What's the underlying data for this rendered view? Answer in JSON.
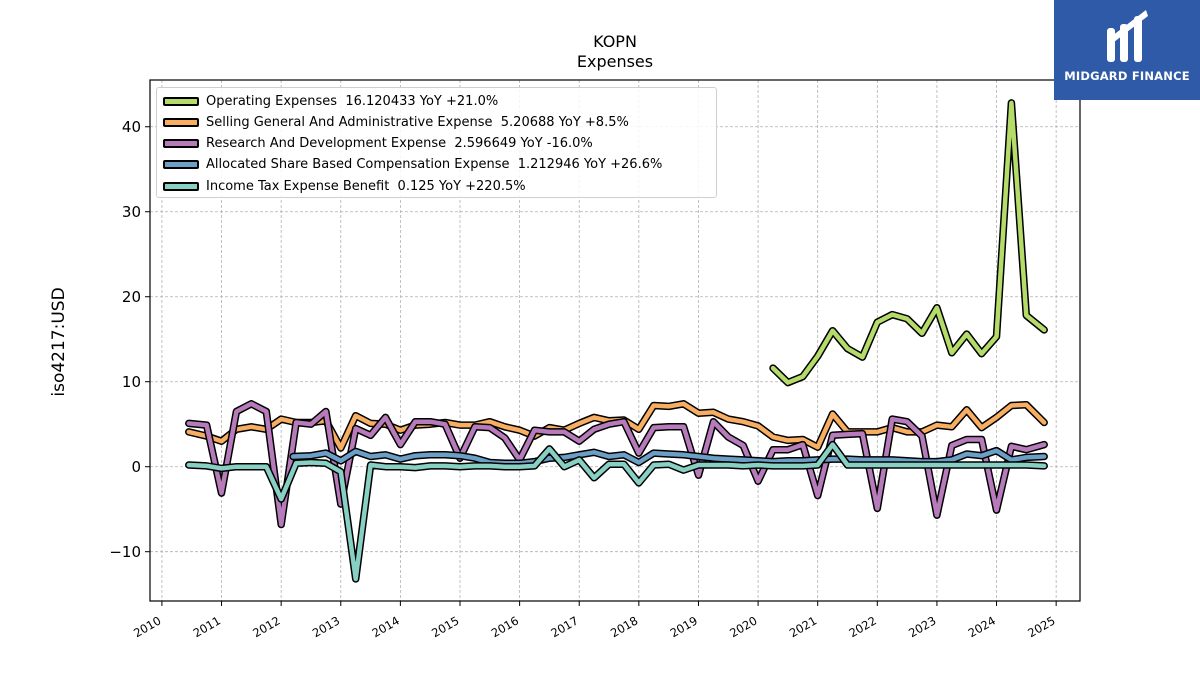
{
  "header": {
    "title": "KOPN",
    "subtitle": "Expenses"
  },
  "brand": {
    "name": "MIDGARD FINANCE",
    "color": "#2f5aa8"
  },
  "chart_data": {
    "type": "line",
    "title": "KOPN",
    "subtitle": "Expenses",
    "xlabel": "",
    "ylabel": "iso4217:USD",
    "xlim": [
      2009.8,
      2025.4
    ],
    "ylim": [
      -15.8,
      45.5
    ],
    "x_ticks": [
      "2010",
      "2011",
      "2012",
      "2013",
      "2014",
      "2015",
      "2016",
      "2017",
      "2018",
      "2019",
      "2020",
      "2021",
      "2022",
      "2023",
      "2024",
      "2025"
    ],
    "y_ticks": [
      -10,
      0,
      10,
      20,
      30,
      40
    ],
    "y_tick_labels": [
      "−10",
      "0",
      "10",
      "20",
      "30",
      "40"
    ],
    "grid": true,
    "legend_position": "top-left",
    "series": [
      {
        "name": "Operating Expenses",
        "legend": "Operating Expenses  16.120433 YoY +21.0%",
        "color": "#b5dc6a",
        "x": [
          2020.25,
          2020.5,
          2020.75,
          2021.0,
          2021.25,
          2021.5,
          2021.75,
          2022.0,
          2022.25,
          2022.5,
          2022.75,
          2023.0,
          2023.25,
          2023.5,
          2023.75,
          2024.0,
          2024.25,
          2024.5,
          2024.8
        ],
        "y": [
          11.6,
          9.9,
          10.6,
          13.0,
          16.0,
          13.9,
          12.9,
          17.0,
          17.9,
          17.4,
          15.7,
          18.7,
          13.4,
          15.6,
          13.3,
          15.3,
          42.8,
          17.8,
          16.1
        ]
      },
      {
        "name": "Selling General And Administrative Expense",
        "legend": "Selling General And Administrative Expense  5.20688 YoY +8.5%",
        "color": "#f7ae62",
        "x": [
          2010.45,
          2010.75,
          2011.0,
          2011.25,
          2011.5,
          2011.75,
          2012.0,
          2012.25,
          2012.5,
          2012.75,
          2013.0,
          2013.25,
          2013.5,
          2013.75,
          2014.0,
          2014.25,
          2014.5,
          2014.75,
          2015.0,
          2015.25,
          2015.5,
          2015.75,
          2016.0,
          2016.25,
          2016.5,
          2016.75,
          2017.0,
          2017.25,
          2017.5,
          2017.75,
          2018.0,
          2018.25,
          2018.5,
          2018.75,
          2019.0,
          2019.25,
          2019.5,
          2019.75,
          2020.0,
          2020.25,
          2020.5,
          2020.75,
          2021.0,
          2021.25,
          2021.5,
          2021.75,
          2022.0,
          2022.25,
          2022.5,
          2022.75,
          2023.0,
          2023.25,
          2023.5,
          2023.75,
          2024.0,
          2024.25,
          2024.5,
          2024.8
        ],
        "y": [
          4.1,
          3.6,
          3.0,
          4.4,
          4.7,
          4.4,
          5.6,
          5.2,
          5.2,
          5.4,
          2.2,
          6.0,
          5.1,
          5.0,
          4.3,
          4.9,
          5.0,
          5.2,
          4.9,
          4.9,
          5.3,
          4.7,
          4.3,
          3.6,
          4.6,
          4.3,
          5.1,
          5.8,
          5.4,
          5.5,
          4.4,
          7.2,
          7.1,
          7.4,
          6.3,
          6.4,
          5.6,
          5.3,
          4.8,
          3.5,
          3.1,
          3.2,
          2.3,
          6.2,
          4.1,
          4.1,
          4.1,
          4.6,
          4.1,
          4.1,
          4.9,
          4.7,
          6.7,
          4.6,
          5.8,
          7.2,
          7.3,
          5.2
        ]
      },
      {
        "name": "Research And Development Expense",
        "legend": "Research And Development Expense  2.596649 YoY -16.0%",
        "color": "#b77bbc",
        "x": [
          2010.45,
          2010.75,
          2011.0,
          2011.25,
          2011.5,
          2011.75,
          2012.0,
          2012.25,
          2012.5,
          2012.75,
          2013.0,
          2013.25,
          2013.5,
          2013.75,
          2014.0,
          2014.25,
          2014.5,
          2014.75,
          2015.0,
          2015.25,
          2015.5,
          2015.75,
          2016.0,
          2016.25,
          2016.5,
          2016.75,
          2017.0,
          2017.25,
          2017.5,
          2017.75,
          2018.0,
          2018.25,
          2018.5,
          2018.75,
          2019.0,
          2019.25,
          2019.5,
          2019.75,
          2020.0,
          2020.25,
          2020.5,
          2020.75,
          2021.0,
          2021.25,
          2021.5,
          2021.75,
          2022.0,
          2022.25,
          2022.5,
          2022.75,
          2023.0,
          2023.25,
          2023.5,
          2023.75,
          2024.0,
          2024.25,
          2024.5,
          2024.8
        ],
        "y": [
          5.1,
          4.9,
          -3.1,
          6.5,
          7.4,
          6.5,
          -6.8,
          5.2,
          5.0,
          6.5,
          -4.4,
          4.5,
          3.7,
          5.8,
          2.6,
          5.3,
          5.3,
          5.0,
          1.0,
          4.7,
          4.6,
          3.4,
          0.8,
          4.3,
          4.1,
          4.1,
          3.0,
          4.4,
          5.0,
          5.3,
          1.6,
          4.6,
          4.7,
          4.7,
          -1.0,
          5.3,
          3.5,
          2.5,
          -1.7,
          2.0,
          2.0,
          2.6,
          -3.4,
          3.7,
          3.8,
          3.9,
          -4.9,
          5.6,
          5.3,
          3.6,
          -5.7,
          2.5,
          3.2,
          3.2,
          -5.1,
          2.4,
          2.0,
          2.6
        ]
      },
      {
        "name": "Allocated Share Based Compensation Expense",
        "legend": "Allocated Share Based Compensation Expense  1.212946 YoY +26.6%",
        "color": "#6c9fc6",
        "x": [
          2012.2,
          2012.5,
          2012.75,
          2013.0,
          2013.25,
          2013.5,
          2013.75,
          2014.0,
          2014.25,
          2014.5,
          2014.75,
          2015.0,
          2015.25,
          2015.5,
          2015.75,
          2016.0,
          2016.25,
          2016.5,
          2016.75,
          2017.0,
          2017.25,
          2017.5,
          2017.75,
          2018.0,
          2018.25,
          2018.5,
          2018.75,
          2019.0,
          2019.25,
          2019.5,
          2019.75,
          2020.0,
          2020.25,
          2020.5,
          2020.75,
          2021.0,
          2021.25,
          2021.5,
          2021.75,
          2022.0,
          2022.25,
          2022.5,
          2022.75,
          2023.0,
          2023.25,
          2023.5,
          2023.75,
          2024.0,
          2024.25,
          2024.5,
          2024.8
        ],
        "y": [
          1.2,
          1.3,
          1.6,
          0.7,
          1.8,
          1.2,
          1.4,
          0.9,
          1.3,
          1.4,
          1.4,
          1.3,
          1.0,
          0.5,
          0.4,
          0.4,
          0.6,
          1.0,
          1.1,
          1.4,
          1.7,
          1.2,
          1.4,
          0.5,
          1.6,
          1.5,
          1.4,
          1.2,
          1.0,
          0.9,
          0.8,
          0.7,
          0.6,
          0.7,
          0.7,
          0.8,
          0.9,
          0.9,
          0.8,
          0.8,
          0.8,
          0.7,
          0.6,
          0.6,
          0.8,
          1.5,
          1.3,
          1.9,
          0.8,
          1.1,
          1.2
        ]
      },
      {
        "name": "Income Tax Expense Benefit",
        "legend": "Income Tax Expense Benefit  0.125 YoY +220.5%",
        "color": "#88d0c4",
        "x": [
          2010.45,
          2010.75,
          2011.0,
          2011.25,
          2011.5,
          2011.75,
          2012.0,
          2012.25,
          2012.5,
          2012.75,
          2013.0,
          2013.25,
          2013.5,
          2013.75,
          2014.0,
          2014.25,
          2014.5,
          2014.75,
          2015.0,
          2015.25,
          2015.5,
          2015.75,
          2016.0,
          2016.25,
          2016.5,
          2016.75,
          2017.0,
          2017.25,
          2017.5,
          2017.75,
          2018.0,
          2018.25,
          2018.5,
          2018.75,
          2019.0,
          2019.25,
          2019.5,
          2019.75,
          2020.0,
          2020.25,
          2020.5,
          2020.75,
          2021.0,
          2021.25,
          2021.5,
          2021.75,
          2022.0,
          2022.25,
          2022.5,
          2022.75,
          2023.0,
          2023.25,
          2023.5,
          2023.75,
          2024.0,
          2024.25,
          2024.5,
          2024.8
        ],
        "y": [
          0.2,
          0.1,
          -0.2,
          0.0,
          0.0,
          0.0,
          -3.8,
          0.4,
          0.5,
          0.4,
          -0.6,
          -13.2,
          0.2,
          0.0,
          0.0,
          -0.1,
          0.1,
          0.1,
          0.0,
          0.1,
          0.1,
          0.0,
          0.0,
          0.1,
          2.1,
          0.0,
          0.8,
          -1.3,
          0.3,
          0.3,
          -1.9,
          0.2,
          0.3,
          -0.4,
          0.2,
          0.2,
          0.2,
          0.1,
          0.2,
          0.1,
          0.1,
          0.1,
          0.2,
          2.6,
          0.2,
          0.2,
          0.2,
          0.2,
          0.2,
          0.2,
          0.2,
          0.2,
          0.2,
          0.2,
          0.2,
          0.2,
          0.2,
          0.1
        ]
      }
    ]
  }
}
